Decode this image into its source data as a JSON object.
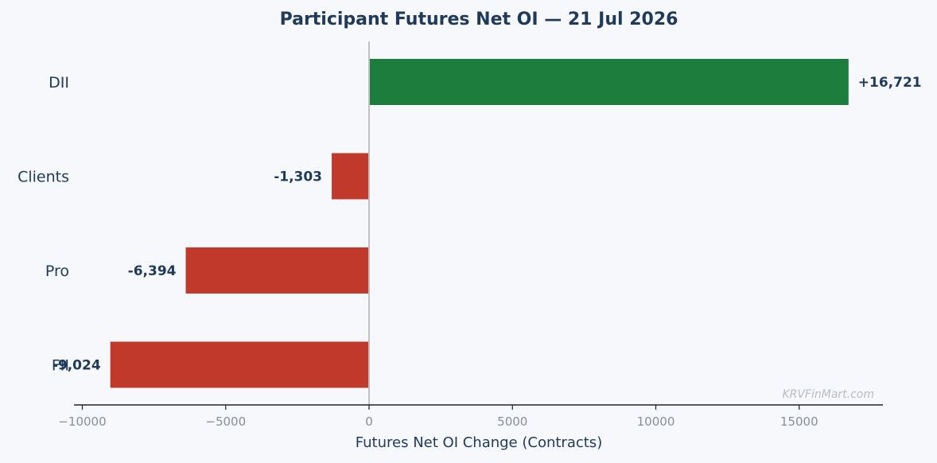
{
  "chart_data": {
    "type": "bar",
    "orientation": "horizontal",
    "title": "Participant Futures Net OI — 21 Jul 2026",
    "xlabel": "Futures Net OI Change (Contracts)",
    "ylabel": "",
    "categories": [
      "DII",
      "Clients",
      "Pro",
      "FII"
    ],
    "values": [
      16721,
      -1303,
      -6394,
      -9024
    ],
    "value_labels": [
      "+16,721",
      "-1,303",
      "-6,394",
      "-9,024"
    ],
    "xlim": [
      -10000,
      17500
    ],
    "xticks": [
      -10000,
      -5000,
      0,
      5000,
      10000,
      15000
    ],
    "xtick_labels": [
      "−10000",
      "−5000",
      "0",
      "5000",
      "10000",
      "15000"
    ],
    "colors": {
      "positive": "#1c7d3c",
      "negative": "#c0392b",
      "zero_line": "#bfc3c8",
      "axis": "#222222",
      "text": "#1f3a5a"
    },
    "grid": false,
    "watermark": "KRVFinMart.com"
  }
}
